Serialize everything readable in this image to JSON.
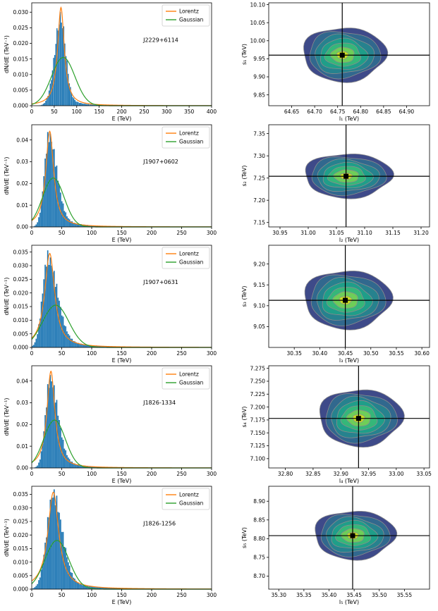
{
  "chart_data": [
    {
      "type": "histogram",
      "source": "J2229+6114",
      "xlabel": "E (TeV)",
      "ylabel": "dN/dE (TeV⁻¹)",
      "xlim": [
        0,
        400
      ],
      "ylim": [
        0,
        0.033
      ],
      "xticks": [
        "0",
        "50",
        "100",
        "150",
        "200",
        "250",
        "300",
        "350",
        "400"
      ],
      "yticks": [
        "0.000",
        "0.005",
        "0.010",
        "0.015",
        "0.020",
        "0.025",
        "0.030"
      ],
      "legend": [
        "Lorentz",
        "Gaussian"
      ],
      "legend_position": "top-right",
      "lorentz": {
        "peak_x": 65,
        "peak_y": 0.0315,
        "width": 9
      },
      "gaussian": {
        "peak_x": 70,
        "peak_y": 0.0155,
        "sigma": 26
      },
      "histogram": {
        "mode": 65,
        "peak": 0.028,
        "left_width": 14,
        "right_width": 11
      }
    },
    {
      "type": "histogram",
      "source": "J1907+0602",
      "xlabel": "E (TeV)",
      "ylabel": "dN/dE (TeV⁻¹)",
      "xlim": [
        0,
        300
      ],
      "ylim": [
        0,
        0.047
      ],
      "xticks": [
        "0",
        "50",
        "100",
        "150",
        "200",
        "250",
        "300"
      ],
      "yticks": [
        "0.00",
        "0.01",
        "0.02",
        "0.03",
        "0.04"
      ],
      "legend": [
        "Lorentz",
        "Gaussian"
      ],
      "legend_position": "top-right",
      "lorentz": {
        "peak_x": 30,
        "peak_y": 0.044,
        "width": 8
      },
      "gaussian": {
        "peak_x": 36,
        "peak_y": 0.0225,
        "sigma": 18
      },
      "histogram": {
        "mode": 29,
        "peak": 0.042,
        "left_width": 8,
        "right_width": 13
      }
    },
    {
      "type": "histogram",
      "source": "J1907+0631",
      "xlabel": "E (TeV)",
      "ylabel": "dN/dE (TeV⁻¹)",
      "xlim": [
        0,
        300
      ],
      "ylim": [
        0,
        0.0375
      ],
      "xticks": [
        "0",
        "50",
        "100",
        "150",
        "200",
        "250",
        "300"
      ],
      "yticks": [
        "0.000",
        "0.005",
        "0.010",
        "0.015",
        "0.020",
        "0.025",
        "0.030",
        "0.035"
      ],
      "legend": [
        "Lorentz",
        "Gaussian"
      ],
      "legend_position": "top-right",
      "lorentz": {
        "peak_x": 30,
        "peak_y": 0.0345,
        "width": 10
      },
      "gaussian": {
        "peak_x": 40,
        "peak_y": 0.0155,
        "sigma": 22
      },
      "histogram": {
        "mode": 27,
        "peak": 0.033,
        "left_width": 9,
        "right_width": 16
      }
    },
    {
      "type": "histogram",
      "source": "J1826-1334",
      "xlabel": "E (TeV)",
      "ylabel": "dN/dE (TeV⁻¹)",
      "xlim": [
        0,
        300
      ],
      "ylim": [
        0,
        0.047
      ],
      "xticks": [
        "0",
        "50",
        "100",
        "150",
        "200",
        "250",
        "300"
      ],
      "yticks": [
        "0.00",
        "0.01",
        "0.02",
        "0.03",
        "0.04"
      ],
      "legend": [
        "Lorentz",
        "Gaussian"
      ],
      "legend_position": "top-right",
      "lorentz": {
        "peak_x": 32,
        "peak_y": 0.0445,
        "width": 8
      },
      "gaussian": {
        "peak_x": 38,
        "peak_y": 0.022,
        "sigma": 18
      },
      "histogram": {
        "mode": 31,
        "peak": 0.041,
        "left_width": 8,
        "right_width": 13
      }
    },
    {
      "type": "histogram",
      "source": "J1826-1256",
      "xlabel": "E (TeV)",
      "ylabel": "dN/dE (TeV⁻¹)",
      "xlim": [
        0,
        300
      ],
      "ylim": [
        0,
        0.038
      ],
      "xticks": [
        "0",
        "50",
        "100",
        "150",
        "200",
        "250",
        "300"
      ],
      "yticks": [
        "0.000",
        "0.005",
        "0.010",
        "0.015",
        "0.020",
        "0.025",
        "0.030",
        "0.035"
      ],
      "legend": [
        "Lorentz",
        "Gaussian"
      ],
      "legend_position": "top-right",
      "lorentz": {
        "peak_x": 36,
        "peak_y": 0.0358,
        "width": 11
      },
      "gaussian": {
        "peak_x": 42,
        "peak_y": 0.018,
        "sigma": 20
      },
      "histogram": {
        "mode": 36,
        "peak": 0.035,
        "left_width": 11,
        "right_width": 15
      }
    },
    {
      "type": "contour",
      "xlabel": "l₁ (TeV)",
      "ylabel": "s₁ (TeV)",
      "xlim": [
        64.6,
        64.95
      ],
      "ylim": [
        9.82,
        10.105
      ],
      "xticks": [
        "64.65",
        "64.70",
        "64.75",
        "64.80",
        "64.85",
        "64.90"
      ],
      "xtick_values": [
        64.65,
        64.7,
        64.75,
        64.8,
        64.85,
        64.9
      ],
      "yticks": [
        "9.85",
        "9.90",
        "9.95",
        "10.00",
        "10.05",
        "10.10"
      ],
      "ytick_values": [
        9.85,
        9.9,
        9.95,
        10.0,
        10.05,
        10.1
      ],
      "center": [
        64.76,
        9.96
      ],
      "spread": [
        0.09,
        0.075
      ],
      "contour_levels": 6
    },
    {
      "type": "contour",
      "xlabel": "l₂ (TeV)",
      "ylabel": "s₂ (TeV)",
      "xlim": [
        30.93,
        31.215
      ],
      "ylim": [
        7.14,
        7.37
      ],
      "xticks": [
        "30.95",
        "31.00",
        "31.05",
        "31.10",
        "31.15",
        "31.20"
      ],
      "xtick_values": [
        30.95,
        31.0,
        31.05,
        31.1,
        31.15,
        31.2
      ],
      "yticks": [
        "7.15",
        "7.20",
        "7.25",
        "7.30",
        "7.35"
      ],
      "ytick_values": [
        7.15,
        7.2,
        7.25,
        7.3,
        7.35
      ],
      "center": [
        31.067,
        7.254
      ],
      "spread": [
        0.077,
        0.05
      ],
      "contour_levels": 6
    },
    {
      "type": "contour",
      "xlabel": "l₃ (TeV)",
      "ylabel": "s₃ (TeV)",
      "xlim": [
        30.3,
        30.615
      ],
      "ylim": [
        9.0,
        9.245
      ],
      "xticks": [
        "30.35",
        "30.40",
        "30.45",
        "30.50",
        "30.55",
        "30.60"
      ],
      "xtick_values": [
        30.35,
        30.4,
        30.45,
        30.5,
        30.55,
        30.6
      ],
      "yticks": [
        "9.05",
        "9.10",
        "9.15",
        "9.20"
      ],
      "ytick_values": [
        9.05,
        9.1,
        9.15,
        9.2
      ],
      "center": [
        30.45,
        9.113
      ],
      "spread": [
        0.085,
        0.07
      ],
      "contour_levels": 6
    },
    {
      "type": "contour",
      "xlabel": "l₄ (TeV)",
      "ylabel": "s₄ (TeV)",
      "xlim": [
        32.77,
        33.06
      ],
      "ylim": [
        7.082,
        7.28
      ],
      "xticks": [
        "32.80",
        "32.85",
        "32.90",
        "32.95",
        "33.00",
        "33.05"
      ],
      "xtick_values": [
        32.8,
        32.85,
        32.9,
        32.95,
        33.0,
        33.05
      ],
      "yticks": [
        "7.100",
        "7.125",
        "7.150",
        "7.175",
        "7.200",
        "7.225",
        "7.250",
        "7.275"
      ],
      "ytick_values": [
        7.1,
        7.125,
        7.15,
        7.175,
        7.2,
        7.225,
        7.25,
        7.275
      ],
      "center": [
        32.932,
        7.178
      ],
      "spread": [
        0.075,
        0.055
      ],
      "contour_levels": 6
    },
    {
      "type": "contour",
      "xlabel": "l₅ (TeV)",
      "ylabel": "s₅ (TeV)",
      "xlim": [
        35.28,
        35.6
      ],
      "ylim": [
        8.665,
        8.94
      ],
      "xticks": [
        "35.30",
        "35.35",
        "35.40",
        "35.45",
        "35.50",
        "35.55"
      ],
      "xtick_values": [
        35.3,
        35.35,
        35.4,
        35.45,
        35.5,
        35.55
      ],
      "yticks": [
        "8.70",
        "8.75",
        "8.80",
        "8.85",
        "8.90"
      ],
      "ytick_values": [
        8.7,
        8.75,
        8.8,
        8.85,
        8.9
      ],
      "center": [
        35.447,
        8.808
      ],
      "spread": [
        0.08,
        0.065
      ],
      "contour_levels": 6
    }
  ],
  "colors": {
    "histogram": "#1f77b4",
    "lorentz": "#ff7f0e",
    "gaussian": "#2ca02c",
    "contour_fills": [
      "#3e4a89",
      "#31688e",
      "#26828e",
      "#1f9e89",
      "#35b779",
      "#6ece58",
      "#c8e020"
    ],
    "contour_edges": "#8c8c8c"
  }
}
